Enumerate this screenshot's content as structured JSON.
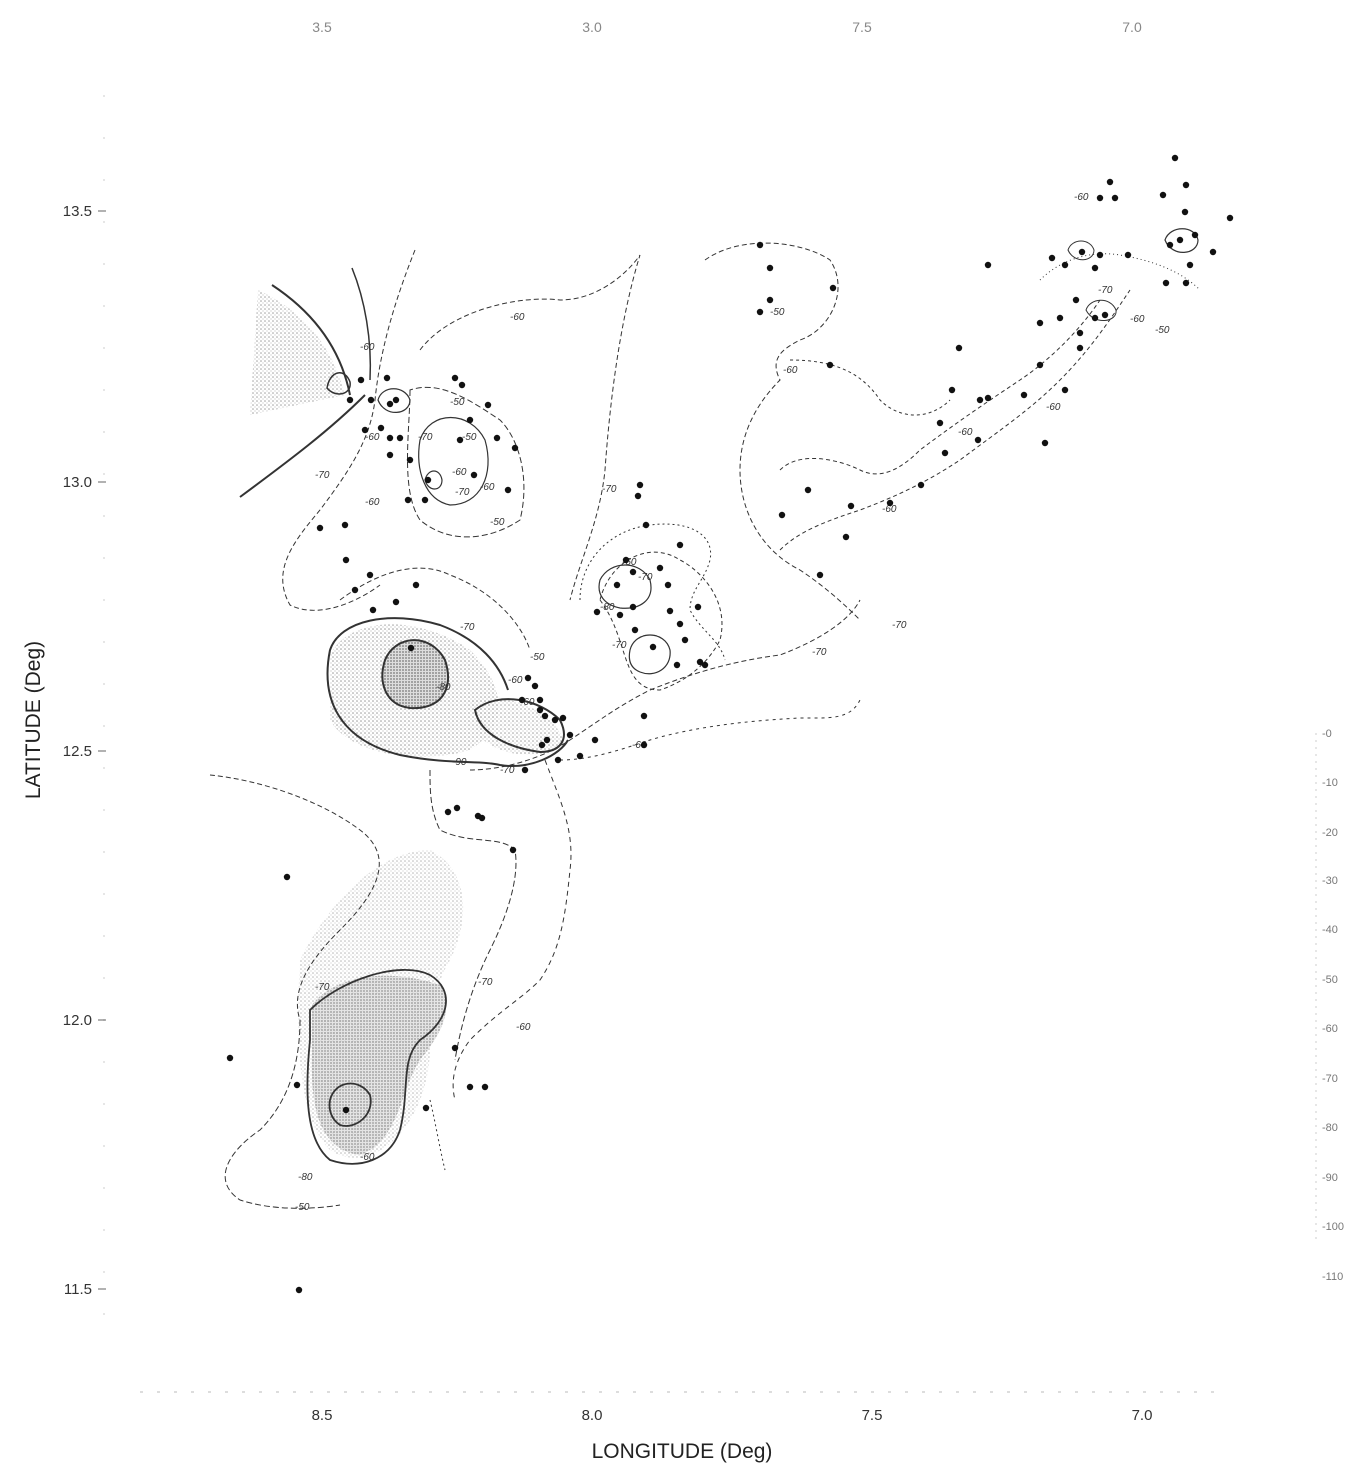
{
  "axes": {
    "x_title": "LONGITUDE (Deg)",
    "y_title": "LATITUDE (Deg)",
    "x_ticks": [
      "8.5",
      "8.0",
      "7.5",
      "7.0"
    ],
    "top_ticks": [
      "3.5",
      "3.0",
      "7.5",
      "7.0"
    ],
    "y_ticks": [
      "13.5",
      "13.0",
      "12.5",
      "12.0",
      "11.5"
    ]
  },
  "contour_labels": {
    "c1": "-60",
    "c2": "-60",
    "c3": "-50",
    "c4": "-60",
    "c5": "-70",
    "c6": "-60",
    "c7": "-70",
    "c8": "-60",
    "c9": "-50",
    "c10": "-70",
    "c11": "-60",
    "c12": "-50",
    "c13": "-70",
    "c14": "-60",
    "c15": "-80",
    "c16": "-60",
    "c17": "-50",
    "c18": "-90",
    "c19": "-80",
    "c20": "-70",
    "c21": "-70",
    "c22": "-70",
    "c23": "-60",
    "c24": "-60",
    "c25": "-70",
    "c26": "-70",
    "c27": "-80",
    "c28": "-70",
    "c29": "-60",
    "c30": "-70",
    "c31": "-60",
    "c32": "-50",
    "c33": "-60",
    "c34": "-70",
    "c35": "-60",
    "c36": "-50",
    "c37": "-60",
    "c38": "-60",
    "c39": "-70",
    "c40": "-60",
    "c41": "-50",
    "c42": "-60"
  },
  "legend": [
    "-0",
    "-10",
    "-20",
    "-30",
    "-40",
    "-50",
    "-60",
    "-70",
    "-80",
    "-90",
    "-100",
    "-110"
  ],
  "colors": {
    "ink": "#222222",
    "shade": "#888888",
    "background": "#ffffff"
  }
}
